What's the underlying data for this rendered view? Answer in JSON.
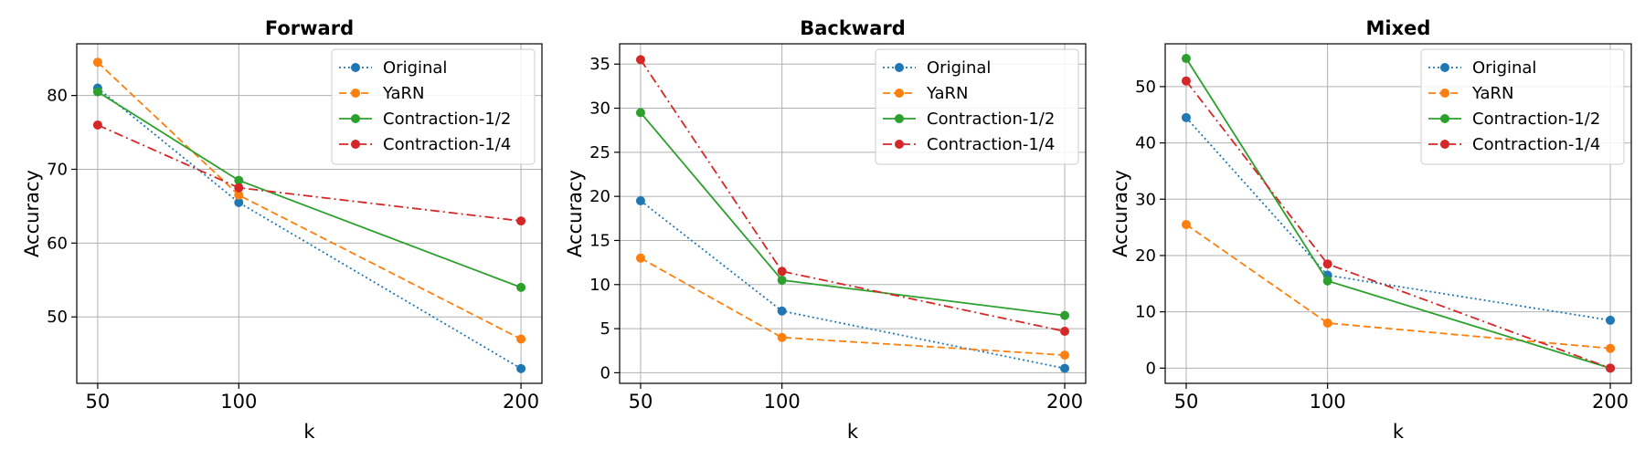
{
  "chart_data": [
    {
      "type": "line",
      "title": "Forward",
      "xlabel": "k",
      "ylabel": "Accuracy",
      "x": [
        50,
        100,
        200
      ],
      "xticks": [
        50,
        100,
        200
      ],
      "yticks": [
        50,
        60,
        70,
        80
      ],
      "ylim": [
        41,
        87
      ],
      "grid": true,
      "legend_position": "top-right",
      "series": [
        {
          "name": "Original",
          "values": [
            81,
            65.5,
            43
          ],
          "color": "#1f77b4",
          "line_style": "dotted"
        },
        {
          "name": "YaRN",
          "values": [
            84.5,
            66.5,
            47
          ],
          "color": "#ff7f0e",
          "line_style": "dashed"
        },
        {
          "name": "Contraction-1/2",
          "values": [
            80.5,
            68.5,
            54
          ],
          "color": "#2ca02c",
          "line_style": "solid"
        },
        {
          "name": "Contraction-1/4",
          "values": [
            76,
            67.5,
            63
          ],
          "color": "#d62728",
          "line_style": "dashdot"
        }
      ]
    },
    {
      "type": "line",
      "title": "Backward",
      "xlabel": "k",
      "ylabel": "Accuracy",
      "x": [
        50,
        100,
        200
      ],
      "xticks": [
        50,
        100,
        200
      ],
      "yticks": [
        0,
        5,
        10,
        15,
        20,
        25,
        30,
        35
      ],
      "ylim": [
        -1.2,
        37.3
      ],
      "grid": true,
      "legend_position": "top-right",
      "series": [
        {
          "name": "Original",
          "values": [
            19.5,
            7,
            0.5
          ],
          "color": "#1f77b4",
          "line_style": "dotted"
        },
        {
          "name": "YaRN",
          "values": [
            13,
            4,
            2
          ],
          "color": "#ff7f0e",
          "line_style": "dashed"
        },
        {
          "name": "Contraction-1/2",
          "values": [
            29.5,
            10.5,
            6.5
          ],
          "color": "#2ca02c",
          "line_style": "solid"
        },
        {
          "name": "Contraction-1/4",
          "values": [
            35.5,
            11.5,
            4.7
          ],
          "color": "#d62728",
          "line_style": "dashdot"
        }
      ]
    },
    {
      "type": "line",
      "title": "Mixed",
      "xlabel": "k",
      "ylabel": "Accuracy",
      "x": [
        50,
        100,
        200
      ],
      "xticks": [
        50,
        100,
        200
      ],
      "yticks": [
        0,
        10,
        20,
        30,
        40,
        50
      ],
      "ylim": [
        -2.7,
        57.6
      ],
      "grid": true,
      "legend_position": "top-right",
      "series": [
        {
          "name": "Original",
          "values": [
            44.5,
            16.5,
            8.5
          ],
          "color": "#1f77b4",
          "line_style": "dotted"
        },
        {
          "name": "YaRN",
          "values": [
            25.5,
            8,
            3.5
          ],
          "color": "#ff7f0e",
          "line_style": "dashed"
        },
        {
          "name": "Contraction-1/2",
          "values": [
            55,
            15.5,
            0
          ],
          "color": "#2ca02c",
          "line_style": "solid"
        },
        {
          "name": "Contraction-1/4",
          "values": [
            51,
            18.5,
            0
          ],
          "color": "#d62728",
          "line_style": "dashdot"
        }
      ]
    }
  ]
}
